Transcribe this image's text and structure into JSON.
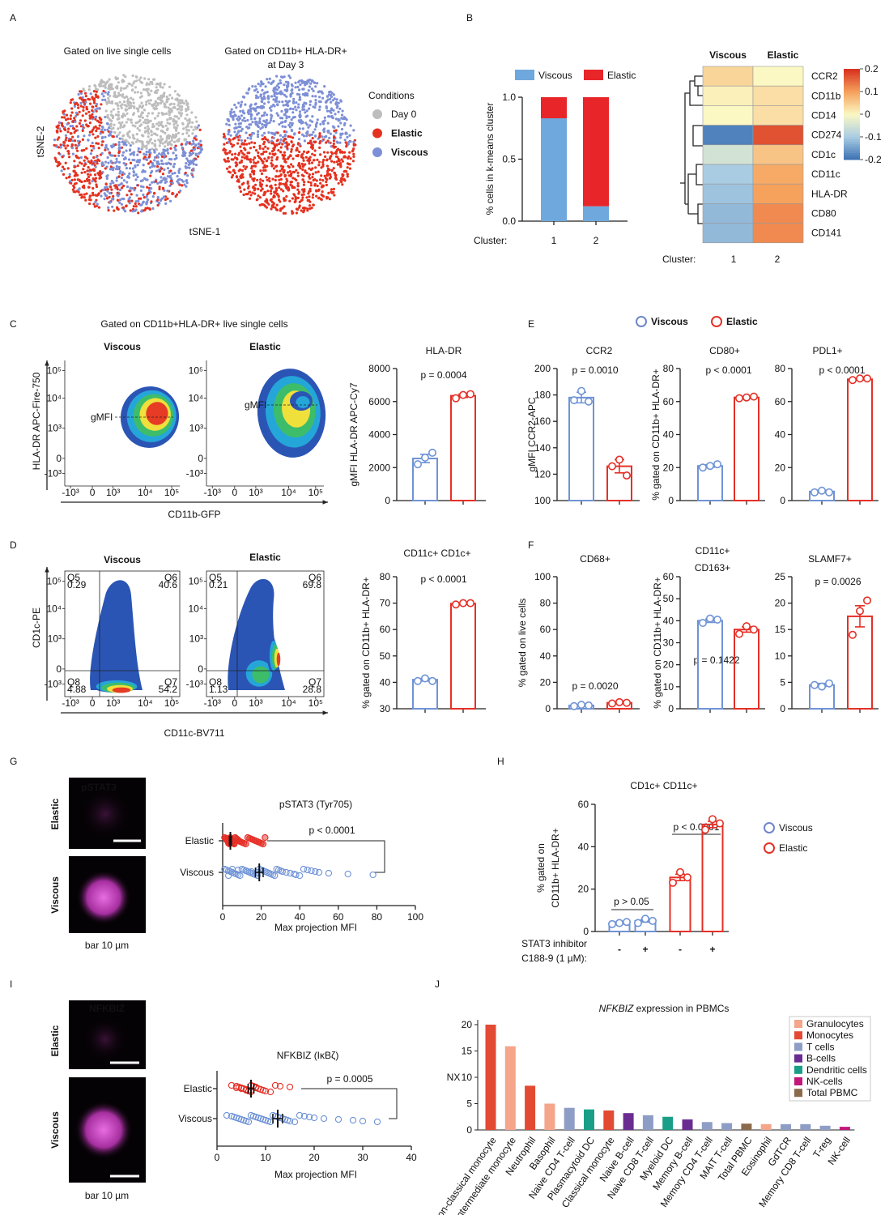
{
  "figure": {
    "panel_letters": [
      "A",
      "B",
      "C",
      "D",
      "E",
      "F",
      "G",
      "H",
      "I",
      "J"
    ],
    "legend_e": [
      {
        "name": "Viscous",
        "color": "#6f86c9"
      },
      {
        "name": "Elastic",
        "color": "#e53027"
      }
    ]
  },
  "tsne": {
    "titles": [
      "Gated on live single cells",
      "Gated on CD11b+ HLA-DR+",
      "at Day 3"
    ],
    "ylabel": "tSNE-2",
    "xlabel": "tSNE-1",
    "legend_title": "Conditions",
    "legend": [
      {
        "name": "Day 0",
        "color": "#bdbdbd"
      },
      {
        "name": "Elastic",
        "color": "#e5311f"
      },
      {
        "name": "Viscous",
        "color": "#7d8fd6"
      }
    ]
  },
  "flow": {
    "c_title": "Gated on CD11b+HLA-DR+ live single cells",
    "c_plots": [
      {
        "title": "Viscous",
        "color": "#6f86c9",
        "gate": "gMFI"
      },
      {
        "title": "Elastic",
        "color": "#e53027",
        "gate": "gMFI"
      }
    ],
    "c_ylabel": "HLA-DR APC-Fire-750",
    "c_xlabel": "CD11b-GFP",
    "d_plots": [
      {
        "title": "Viscous",
        "color": "#6f86c9",
        "quadrants": [
          {
            "name": "Q5",
            "value": 0.29
          },
          {
            "name": "Q6",
            "value": 40.6
          },
          {
            "name": "Q8",
            "value": 4.88
          },
          {
            "name": "Q7",
            "value": 54.2
          }
        ]
      },
      {
        "title": "Elastic",
        "color": "#e53027",
        "quadrants": [
          {
            "name": "Q5",
            "value": 0.21
          },
          {
            "name": "Q6",
            "value": 69.8
          },
          {
            "name": "Q8",
            "value": 1.13
          },
          {
            "name": "Q7",
            "value": 28.8
          }
        ]
      }
    ],
    "d_ylabel": "CD1c-PE",
    "d_xlabel": "CD11c-BV711",
    "yticks": [
      "10⁵",
      "10⁴",
      "10³",
      "0",
      "-10³"
    ],
    "xticks": [
      "-10³",
      "0",
      "10³",
      "10⁴",
      "10⁵"
    ]
  },
  "images": {
    "g_label": "pSTAT3",
    "i_label": "NFKBIZ",
    "rows": [
      {
        "name": "Elastic",
        "color": "#e53027"
      },
      {
        "name": "Viscous",
        "color": "#6f86c9"
      }
    ],
    "scale": "bar 10 µm"
  },
  "chart_data": [
    {
      "type": "stacked_bar",
      "ylabel": "% cells in k-means cluster",
      "xlabel": "Cluster:",
      "categories": [
        "1",
        "2"
      ],
      "series": [
        {
          "name": "Viscous",
          "color": "#6fa8dc",
          "values": [
            0.83,
            0.12
          ]
        },
        {
          "name": "Elastic",
          "color": "#e8262a",
          "values": [
            0.17,
            0.88
          ]
        }
      ],
      "ylim": [
        0,
        1
      ],
      "yticks": [
        {
          "value": 0,
          "label": "0.0"
        },
        {
          "value": 0.5,
          "label": "0.5"
        },
        {
          "value": 1,
          "label": "1.0"
        }
      ]
    },
    {
      "type": "heatmap",
      "columns": [
        "Viscous",
        "Elastic"
      ],
      "column_colors": [
        "#6f86c9",
        "#e53027"
      ],
      "rows": [
        "CCR2",
        "CD11b",
        "CD14",
        "CD274",
        "CD1c",
        "CD11c",
        "HLA-DR",
        "CD80",
        "CD141"
      ],
      "values": [
        [
          0.04,
          0.0
        ],
        [
          0.01,
          0.03
        ],
        [
          0.0,
          0.03
        ],
        [
          -0.18,
          0.17
        ],
        [
          -0.05,
          0.06
        ],
        [
          -0.1,
          0.09
        ],
        [
          -0.11,
          0.1
        ],
        [
          -0.12,
          0.12
        ],
        [
          -0.12,
          0.12
        ]
      ],
      "clim": [
        -0.2,
        0.2
      ],
      "colorbar_ticks": [
        0.2,
        0.1,
        0,
        -0.1,
        -0.2
      ],
      "colormap": [
        "#3a6fb3",
        "#a9cce3",
        "#fbf8c4",
        "#f6a15c",
        "#d7301f"
      ],
      "xlabel": "Cluster:",
      "categories": [
        "1",
        "2"
      ]
    },
    {
      "type": "dot_bar",
      "title": "HLA-DR",
      "ylabel": "gMFI HLA-DR APC-Cy7",
      "annotations": [
        "p = 0.0004"
      ],
      "ylim": [
        0,
        8000
      ],
      "yticks": [
        0,
        2000,
        4000,
        6000,
        8000
      ],
      "groups": [
        {
          "color": "#6f93d6",
          "value": 2550,
          "error": 250,
          "points": [
            2200,
            2600,
            2900
          ]
        },
        {
          "color": "#e53027",
          "value": 6350,
          "error": 100,
          "points": [
            6200,
            6400,
            6450
          ]
        }
      ]
    },
    {
      "type": "dot_bar",
      "title": "CCR2",
      "ylabel": "gMFI CCR2-APC",
      "annotations": [
        "p = 0.0010"
      ],
      "ylim": [
        100,
        200
      ],
      "yticks": [
        100,
        120,
        140,
        160,
        180,
        200
      ],
      "groups": [
        {
          "color": "#6f93d6",
          "value": 178,
          "error": 4,
          "points": [
            176,
            183,
            175
          ]
        },
        {
          "color": "#e53027",
          "value": 126,
          "error": 5,
          "points": [
            126,
            131,
            119
          ]
        }
      ]
    },
    {
      "type": "dot_bar",
      "title": "CD80+",
      "ylabel": "% gated on CD11b+ HLA-DR+",
      "annotations": [
        "p < 0.0001"
      ],
      "ylim": [
        0,
        80
      ],
      "yticks": [
        0,
        20,
        40,
        60,
        80
      ],
      "groups": [
        {
          "color": "#6f93d6",
          "value": 21,
          "error": 0.8,
          "points": [
            20,
            21,
            22
          ]
        },
        {
          "color": "#e53027",
          "value": 62.5,
          "error": 0.5,
          "points": [
            62,
            62.5,
            63
          ]
        }
      ]
    },
    {
      "type": "dot_bar",
      "title": "PDL1+",
      "annotations": [
        "p < 0.0001"
      ],
      "ylim": [
        0,
        80
      ],
      "yticks": [
        0,
        20,
        40,
        60,
        80
      ],
      "groups": [
        {
          "color": "#6f93d6",
          "value": 5.5,
          "error": 0.6,
          "points": [
            5,
            6,
            5
          ]
        },
        {
          "color": "#e53027",
          "value": 73.5,
          "error": 0.5,
          "points": [
            73,
            74,
            74
          ]
        }
      ]
    },
    {
      "type": "dot_bar",
      "title": "CD11c+ CD1c+",
      "ylabel": "% gated on CD11b+ HLA-DR+",
      "annotations": [
        "p < 0.0001"
      ],
      "ylim": [
        30,
        80
      ],
      "yticks": [
        30,
        40,
        50,
        60,
        70,
        80
      ],
      "groups": [
        {
          "color": "#6f93d6",
          "value": 41,
          "error": 0.5,
          "points": [
            40.5,
            41.5,
            40.5
          ]
        },
        {
          "color": "#e53027",
          "value": 69.8,
          "error": 0.3,
          "points": [
            69.5,
            70,
            70
          ]
        }
      ]
    },
    {
      "type": "dot_bar",
      "title": "CD68+",
      "ylabel": "% gated on live cells",
      "annotations": [
        "p = 0.0020"
      ],
      "ylim": [
        0,
        100
      ],
      "yticks": [
        0,
        20,
        40,
        60,
        80,
        100
      ],
      "groups": [
        {
          "color": "#6f93d6",
          "value": 2.5,
          "error": 0.4,
          "points": [
            2,
            3,
            2.5
          ]
        },
        {
          "color": "#e53027",
          "value": 4.5,
          "error": 0.4,
          "points": [
            4,
            5,
            4.5
          ]
        }
      ]
    },
    {
      "type": "dot_bar",
      "title_lines": [
        "CD11c+",
        "CD163+"
      ],
      "ylabel": "% gated on CD11b+ HLA-DR+",
      "annotations": [
        "p = 0.1422"
      ],
      "ylim": [
        0,
        60
      ],
      "yticks": [
        0,
        10,
        20,
        30,
        40,
        50,
        60
      ],
      "groups": [
        {
          "color": "#6f93d6",
          "value": 40,
          "error": 0.8,
          "points": [
            39,
            41,
            40.5
          ]
        },
        {
          "color": "#e53027",
          "value": 36,
          "error": 1.2,
          "points": [
            34,
            37.5,
            36
          ]
        }
      ]
    },
    {
      "type": "dot_bar",
      "title": "SLAMF7+",
      "annotations": [
        "p = 0.0026"
      ],
      "ylim": [
        0,
        25
      ],
      "yticks": [
        0,
        5,
        10,
        15,
        20,
        25
      ],
      "groups": [
        {
          "color": "#6f93d6",
          "value": 4.5,
          "error": 0.3,
          "points": [
            4.5,
            4.2,
            4.8
          ]
        },
        {
          "color": "#e53027",
          "value": 17.5,
          "error": 2,
          "points": [
            14,
            18.5,
            20.5
          ]
        }
      ]
    },
    {
      "type": "strip",
      "title": "pSTAT3 (Tyr705)",
      "xlabel": "Max projection MFI",
      "annotations": [
        "p < 0.0001"
      ],
      "xlim": [
        0,
        100
      ],
      "xticks": [
        0,
        20,
        40,
        60,
        80,
        100
      ],
      "rows": [
        {
          "name": "Elastic",
          "color": "#e53027",
          "mean": 4,
          "sem": 0.5,
          "values": [
            1,
            1.5,
            2,
            2,
            2.5,
            3,
            3,
            3,
            3.5,
            4,
            4,
            4,
            4.5,
            5,
            5,
            5.5,
            6,
            6,
            6.5,
            7,
            7.5,
            8,
            8.5,
            9,
            10,
            11,
            12,
            13,
            14,
            15,
            16,
            17,
            18,
            19,
            20,
            21,
            22,
            3,
            2,
            4
          ]
        },
        {
          "name": "Viscous",
          "color": "#6f93d6",
          "mean": 19,
          "sem": 2,
          "values": [
            1,
            2,
            3,
            4,
            5,
            6,
            7,
            8,
            9,
            10,
            11,
            12,
            13,
            14,
            15,
            16,
            17,
            18,
            19,
            20,
            21,
            22,
            23,
            24,
            25,
            26,
            27,
            28,
            29,
            30,
            31,
            33,
            35,
            37,
            38,
            40,
            42,
            44,
            46,
            48,
            50,
            55,
            65,
            78,
            3,
            5,
            8,
            12,
            15,
            18
          ]
        }
      ]
    },
    {
      "type": "dot_bar",
      "title": "CD1c+ CD11c+",
      "ylabel_lines": [
        "% gated on",
        "CD11b+ HLA-DR+"
      ],
      "annotations": [
        "p > 0.05",
        "p < 0.0001"
      ],
      "ylim": [
        0,
        60
      ],
      "yticks": [
        0,
        20,
        40,
        60
      ],
      "categories": [
        "-",
        "+",
        "-",
        "+"
      ],
      "xlabel_lines": [
        "STAT3 inhibitor",
        "C188-9 (1 µM):"
      ],
      "legend": [
        {
          "name": "Viscous",
          "color": "#6f86c9"
        },
        {
          "name": "Elastic",
          "color": "#e53027"
        }
      ],
      "groups": [
        {
          "color": "#6f93d6",
          "value": 4,
          "error": 0.4,
          "points": [
            3.5,
            4,
            4.5
          ]
        },
        {
          "color": "#6f93d6",
          "value": 5,
          "error": 0.6,
          "points": [
            4,
            6,
            5
          ]
        },
        {
          "color": "#e53027",
          "value": 25.5,
          "error": 1.5,
          "points": [
            23,
            28,
            25.5
          ]
        },
        {
          "color": "#e53027",
          "value": 50.5,
          "error": 1.5,
          "points": [
            48,
            53,
            51
          ]
        }
      ]
    },
    {
      "type": "strip",
      "title": "NFKBIZ (IκBζ)",
      "xlabel": "Max projection MFI",
      "annotations": [
        "p = 0.0005"
      ],
      "xlim": [
        0,
        40
      ],
      "xticks": [
        0,
        10,
        20,
        30,
        40
      ],
      "rows": [
        {
          "name": "Elastic",
          "color": "#e53027",
          "mean": 7,
          "sem": 0.6,
          "values": [
            3,
            4,
            4.5,
            5,
            5.5,
            6,
            6,
            6.5,
            7,
            7,
            7.5,
            8,
            8,
            8.5,
            9,
            9.5,
            10,
            11,
            12,
            13,
            15,
            4,
            5,
            6,
            7
          ]
        },
        {
          "name": "Viscous",
          "color": "#6f93d6",
          "mean": 12.5,
          "sem": 1,
          "values": [
            2,
            3,
            3.5,
            4,
            4.5,
            5,
            5.5,
            6,
            6.5,
            7,
            7.5,
            8,
            8.5,
            9,
            9.5,
            10,
            10.5,
            11,
            11.5,
            12,
            12.5,
            13,
            13.5,
            14,
            14.5,
            15,
            16,
            17,
            18,
            19,
            20,
            22,
            25,
            28,
            30,
            33
          ]
        }
      ]
    },
    {
      "type": "bar",
      "title_italic": "NFKBIZ",
      "title": "expression in PBMCs",
      "ylabel": "NX",
      "ylim": [
        0,
        20
      ],
      "yticks": [
        0,
        5,
        10,
        15,
        20
      ],
      "categories": [
        "Non-classical monocyte",
        "Intermediate monocyte",
        "Neutrophil",
        "Basophil",
        "Naive CD4 T-cell",
        "Plasmacytoid DC",
        "Classical monocyte",
        "Naive B-cell",
        "Naive CD8 T-cell",
        "Myeloid DC",
        "Memory B-cell",
        "Memory CD4 T-cell",
        "MAIT T-cell",
        "Total PBMC",
        "Eosinophil",
        "GdTCR",
        "Memory CD8 T-cell",
        "T-reg",
        "NK-cell"
      ],
      "values": [
        20,
        15.9,
        8.4,
        5.0,
        4.2,
        3.9,
        3.7,
        3.2,
        2.8,
        2.5,
        2.0,
        1.5,
        1.3,
        1.2,
        1.1,
        1.1,
        1.1,
        0.8,
        0.6
      ],
      "colors": [
        "#e34a33",
        "#f4a58a",
        "#e34a33",
        "#f4a58a",
        "#8e9dc5",
        "#1b9e87",
        "#e34a33",
        "#6a2c91",
        "#8e9dc5",
        "#1b9e87",
        "#6a2c91",
        "#8e9dc5",
        "#8e9dc5",
        "#8b6a4b",
        "#f4a58a",
        "#8e9dc5",
        "#8e9dc5",
        "#8e9dc5",
        "#c2187c"
      ],
      "legend": [
        {
          "name": "Granulocytes",
          "color": "#f4a58a"
        },
        {
          "name": "Monocytes",
          "color": "#e34a33"
        },
        {
          "name": "T cells",
          "color": "#8e9dc5"
        },
        {
          "name": "B-cells",
          "color": "#6a2c91"
        },
        {
          "name": "Dendritic cells",
          "color": "#1b9e87"
        },
        {
          "name": "NK-cells",
          "color": "#c2187c"
        },
        {
          "name": "Total PBMC",
          "color": "#8b6a4b"
        }
      ]
    }
  ]
}
